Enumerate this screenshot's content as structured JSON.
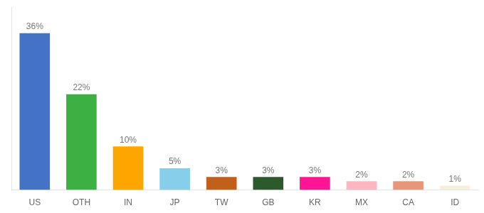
{
  "chart_data": {
    "type": "bar",
    "categories": [
      "US",
      "OTH",
      "IN",
      "JP",
      "TW",
      "GB",
      "KR",
      "MX",
      "CA",
      "ID"
    ],
    "values": [
      36,
      22,
      10,
      5,
      3,
      3,
      3,
      2,
      2,
      1
    ],
    "value_labels": [
      "36%",
      "22%",
      "10%",
      "5%",
      "3%",
      "3%",
      "3%",
      "2%",
      "2%",
      "1%"
    ],
    "colors": [
      "#4472C4",
      "#3CB043",
      "#FFA500",
      "#87CEEB",
      "#C0601A",
      "#2D5A2D",
      "#FF1493",
      "#FFB6C1",
      "#E8967A",
      "#F5F0DC"
    ],
    "ylim": [
      0,
      42
    ],
    "data_labels": true,
    "tick_labels": "x",
    "grid": false
  }
}
